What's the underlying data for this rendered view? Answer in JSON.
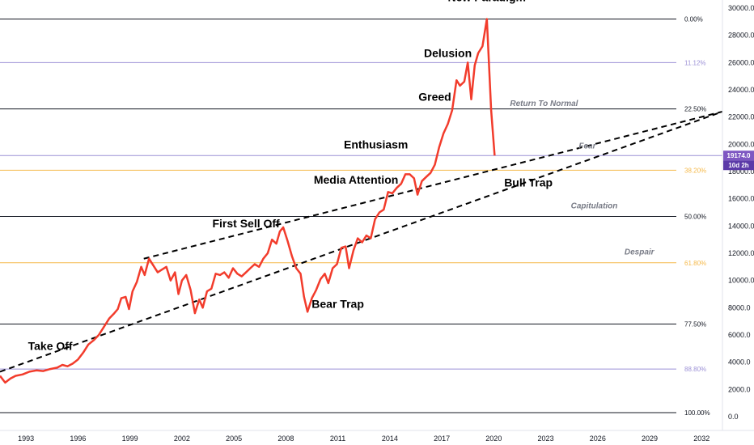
{
  "chart_data": {
    "type": "line",
    "title": "",
    "xlabel": "",
    "ylabel": "",
    "ylim": [
      -1500,
      31000
    ],
    "xlim": [
      1991.5,
      2033.2
    ],
    "x_ticks": [
      1993,
      1996,
      1999,
      2002,
      2005,
      2008,
      2011,
      2014,
      2017,
      2020,
      2023,
      2026,
      2029,
      2032
    ],
    "x_tick_labels": [
      "1993",
      "1996",
      "1999",
      "2002",
      "2005",
      "2008",
      "2011",
      "2014",
      "2017",
      "2020",
      "2023",
      "2026",
      "2029",
      "2032"
    ],
    "y_ticks": [
      0,
      2000,
      4000,
      6000,
      8000,
      10000,
      12000,
      14000,
      16000,
      18000,
      20000,
      22000,
      24000,
      26000,
      28000,
      30000
    ],
    "y_tick_labels": [
      "0.0",
      "2000.0",
      "4000.0",
      "6000.0",
      "8000.0",
      "10000.0",
      "12000.0",
      "14000.0",
      "16000.0",
      "18000.0",
      "20000.0",
      "22000.0",
      "24000.0",
      "26000.0",
      "28000.0",
      "30000.0"
    ],
    "grid": false,
    "series": [
      {
        "color": "#f23c2c",
        "points": [
          [
            1991.5,
            3000
          ],
          [
            1991.8,
            2500
          ],
          [
            1992.1,
            2800
          ],
          [
            1992.4,
            3000
          ],
          [
            1992.8,
            3100
          ],
          [
            1993.2,
            3300
          ],
          [
            1993.6,
            3400
          ],
          [
            1994.0,
            3350
          ],
          [
            1994.4,
            3500
          ],
          [
            1994.8,
            3600
          ],
          [
            1995.1,
            3800
          ],
          [
            1995.4,
            3700
          ],
          [
            1995.7,
            3900
          ],
          [
            1996.0,
            4200
          ],
          [
            1996.3,
            4700
          ],
          [
            1996.6,
            5300
          ],
          [
            1996.9,
            5600
          ],
          [
            1997.2,
            6000
          ],
          [
            1997.5,
            6600
          ],
          [
            1997.8,
            7200
          ],
          [
            1998.1,
            7600
          ],
          [
            1998.3,
            7900
          ],
          [
            1998.5,
            8700
          ],
          [
            1998.75,
            8800
          ],
          [
            1998.95,
            7900
          ],
          [
            1999.15,
            9200
          ],
          [
            1999.4,
            9900
          ],
          [
            1999.65,
            11000
          ],
          [
            1999.85,
            10400
          ],
          [
            2000.1,
            11600
          ],
          [
            2000.35,
            11100
          ],
          [
            2000.6,
            10600
          ],
          [
            2000.85,
            10800
          ],
          [
            2001.1,
            11000
          ],
          [
            2001.35,
            10000
          ],
          [
            2001.6,
            10600
          ],
          [
            2001.8,
            9000
          ],
          [
            2002.0,
            10000
          ],
          [
            2002.25,
            10400
          ],
          [
            2002.5,
            9300
          ],
          [
            2002.75,
            7600
          ],
          [
            2003.0,
            8600
          ],
          [
            2003.2,
            8000
          ],
          [
            2003.45,
            9200
          ],
          [
            2003.7,
            9400
          ],
          [
            2003.95,
            10500
          ],
          [
            2004.2,
            10400
          ],
          [
            2004.45,
            10600
          ],
          [
            2004.7,
            10200
          ],
          [
            2004.95,
            10900
          ],
          [
            2005.2,
            10500
          ],
          [
            2005.45,
            10300
          ],
          [
            2005.7,
            10600
          ],
          [
            2005.95,
            10900
          ],
          [
            2006.2,
            11200
          ],
          [
            2006.45,
            11000
          ],
          [
            2006.7,
            11600
          ],
          [
            2006.95,
            12000
          ],
          [
            2007.2,
            13000
          ],
          [
            2007.45,
            12700
          ],
          [
            2007.65,
            13600
          ],
          [
            2007.85,
            13900
          ],
          [
            2008.1,
            12900
          ],
          [
            2008.35,
            11800
          ],
          [
            2008.6,
            10900
          ],
          [
            2008.85,
            10500
          ],
          [
            2009.05,
            8800
          ],
          [
            2009.25,
            7700
          ],
          [
            2009.5,
            8700
          ],
          [
            2009.75,
            9300
          ],
          [
            2010.0,
            10100
          ],
          [
            2010.25,
            10500
          ],
          [
            2010.45,
            9800
          ],
          [
            2010.7,
            10900
          ],
          [
            2010.95,
            11200
          ],
          [
            2011.2,
            12400
          ],
          [
            2011.45,
            12500
          ],
          [
            2011.65,
            10900
          ],
          [
            2011.9,
            12200
          ],
          [
            2012.15,
            13100
          ],
          [
            2012.4,
            12800
          ],
          [
            2012.65,
            13300
          ],
          [
            2012.9,
            13100
          ],
          [
            2013.15,
            14500
          ],
          [
            2013.4,
            15000
          ],
          [
            2013.65,
            15200
          ],
          [
            2013.9,
            16500
          ],
          [
            2014.15,
            16400
          ],
          [
            2014.4,
            16800
          ],
          [
            2014.65,
            17100
          ],
          [
            2014.9,
            17800
          ],
          [
            2015.15,
            17800
          ],
          [
            2015.4,
            17500
          ],
          [
            2015.6,
            16300
          ],
          [
            2015.85,
            17300
          ],
          [
            2016.1,
            17600
          ],
          [
            2016.35,
            17900
          ],
          [
            2016.6,
            18500
          ],
          [
            2016.85,
            19800
          ],
          [
            2017.1,
            20800
          ],
          [
            2017.35,
            21500
          ],
          [
            2017.6,
            22500
          ],
          [
            2017.85,
            24700
          ],
          [
            2018.05,
            24300
          ],
          [
            2018.3,
            24600
          ],
          [
            2018.5,
            26000
          ],
          [
            2018.7,
            23300
          ],
          [
            2018.9,
            25800
          ],
          [
            2019.1,
            26700
          ],
          [
            2019.35,
            27200
          ],
          [
            2019.6,
            29200
          ],
          [
            2019.85,
            22500
          ],
          [
            2020.05,
            19174
          ]
        ]
      }
    ],
    "fib_levels": [
      {
        "label": "0.00%",
        "value": 29200,
        "color": "#131722"
      },
      {
        "label": "11.12%",
        "value": 26000,
        "color": "#9c91d6"
      },
      {
        "label": "22.50%",
        "value": 22600,
        "color": "#131722"
      },
      {
        "label": "38.20%",
        "value": 18100,
        "color": "#f5b94a"
      },
      {
        "label": "50.00%",
        "value": 14700,
        "color": "#131722"
      },
      {
        "label": "61.80%",
        "value": 11300,
        "color": "#f5b94a"
      },
      {
        "label": "77.50%",
        "value": 6800,
        "color": "#131722"
      },
      {
        "label": "88.80%",
        "value": 3500,
        "color": "#9c91d6"
      },
      {
        "label": "100.00%",
        "value": 300,
        "color": "#131722"
      }
    ],
    "current_price": {
      "value": 19174,
      "label": "19174.0",
      "countdown": "10d 2h",
      "line_color": "#9c91d6",
      "badge_color": "#7e57c2",
      "countdown_color": "#5b3aa8"
    },
    "trendlines": [
      {
        "from": [
          1991.5,
          3300
        ],
        "to": [
          2033.2,
          22400
        ],
        "style": "dashed",
        "color": "#000000"
      },
      {
        "from": [
          1999.8,
          11600
        ],
        "to": [
          2033.2,
          22400
        ],
        "style": "dashed",
        "color": "#000000"
      }
    ],
    "annotations": [
      {
        "text": "New Paradigm",
        "x": 2019.6,
        "y": 30500,
        "style": "bold"
      },
      {
        "text": "Delusion",
        "x": 2017.35,
        "y": 26400,
        "style": "bold"
      },
      {
        "text": "Greed",
        "x": 2016.6,
        "y": 23200,
        "style": "bold"
      },
      {
        "text": "Enthusiasm",
        "x": 2013.2,
        "y": 19700,
        "style": "bold"
      },
      {
        "text": "Media Attention",
        "x": 2012.05,
        "y": 17100,
        "style": "bold"
      },
      {
        "text": "First Sell Off",
        "x": 2005.7,
        "y": 13900,
        "style": "bold"
      },
      {
        "text": "Bear Trap",
        "x": 2011.0,
        "y": 8000,
        "style": "bold"
      },
      {
        "text": "Take Off",
        "x": 1994.4,
        "y": 4900,
        "style": "bold"
      },
      {
        "text": "Bull Trap",
        "x": 2022.0,
        "y": 16900,
        "style": "bold"
      },
      {
        "text": "Return To Normal",
        "x": 2022.9,
        "y": 22800,
        "style": "muted"
      },
      {
        "text": "Fear",
        "x": 2025.4,
        "y": 19700,
        "style": "muted"
      },
      {
        "text": "Capitulation",
        "x": 2025.8,
        "y": 15300,
        "style": "muted"
      },
      {
        "text": "Despair",
        "x": 2028.4,
        "y": 11900,
        "style": "muted"
      }
    ]
  }
}
